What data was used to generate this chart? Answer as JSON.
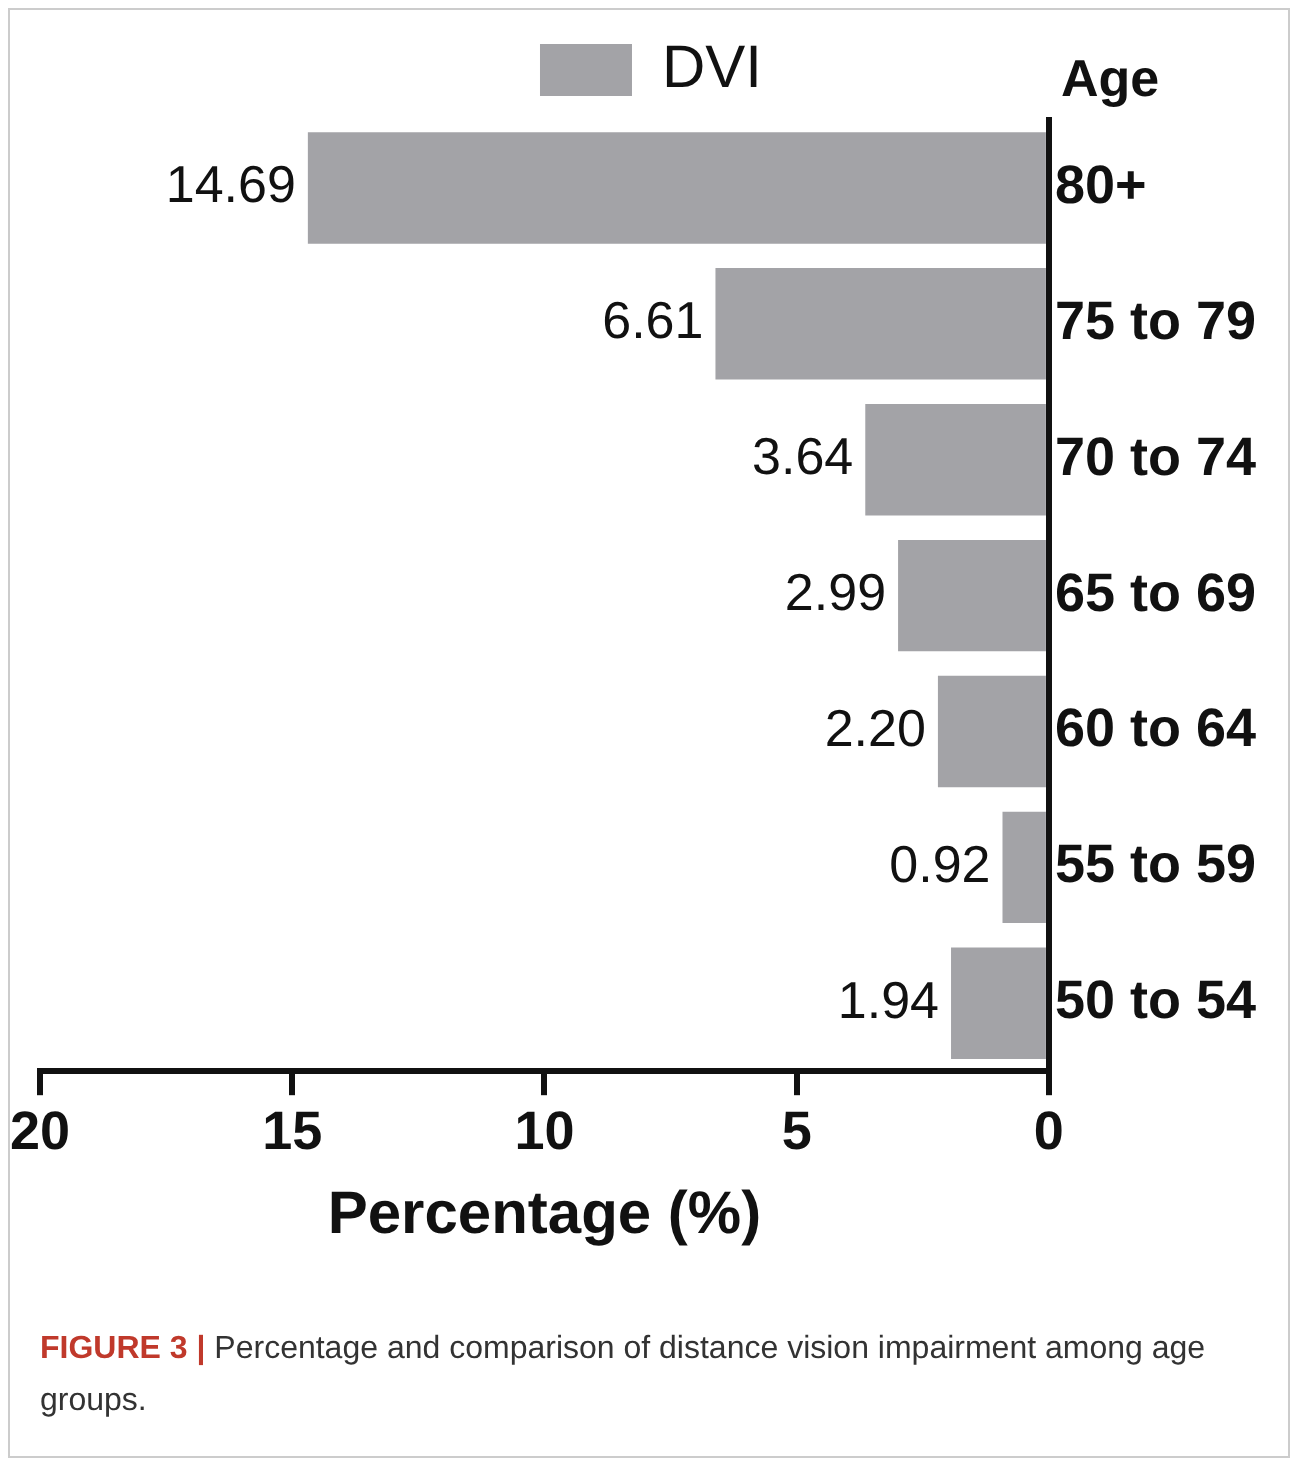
{
  "chart_data": {
    "type": "bar",
    "orientation": "horizontal",
    "xlabel": "Percentage (%)",
    "ylabel": "Age",
    "categories": [
      "80+",
      "75 to 79",
      "70 to 74",
      "65 to 69",
      "60 to 64",
      "55 to 59",
      "50 to 54"
    ],
    "series": [
      {
        "name": "DVI",
        "color": "#a3a3a7",
        "values": [
          14.69,
          6.61,
          3.64,
          2.99,
          2.2,
          0.92,
          1.94
        ],
        "value_labels": [
          "14.69",
          "6.61",
          "3.64",
          "2.99",
          "2.20",
          "0.92",
          "1.94"
        ]
      }
    ],
    "xlim": [
      20,
      0
    ],
    "xticks": [
      20,
      15,
      10,
      5,
      0
    ],
    "grid": false,
    "legend": "top",
    "annotations": [
      "FIGURE 3 | Percentage and comparison of distance vision impairment among age groups."
    ]
  }
}
